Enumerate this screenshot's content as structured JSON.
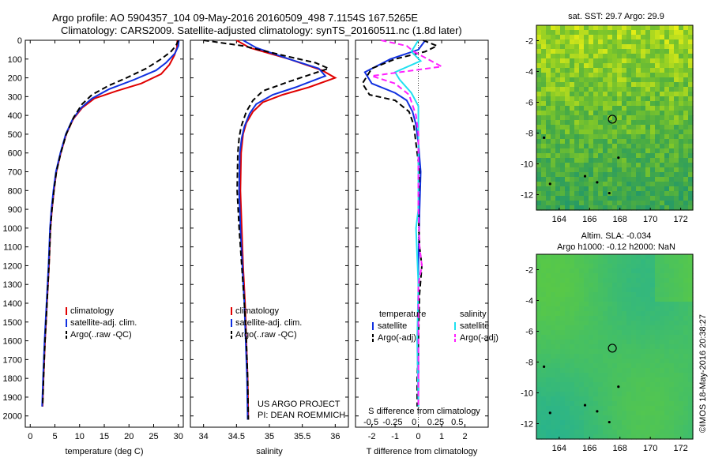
{
  "header": {
    "line1": "Argo profile: AO 5904357_104 09-May-2016 20160509_498 7.1154S 167.5265E",
    "line2": "Climatology: CARS2009. Satellite-adjusted climatology: synTS_20160511.nc (1.8d later)"
  },
  "colors": {
    "clim": "#e00000",
    "sat": "#1030e0",
    "argo": "#000000",
    "cyan": "#20e0f0",
    "magenta": "#ff20ff"
  },
  "depth_ticks": [
    0,
    100,
    200,
    300,
    400,
    500,
    600,
    700,
    800,
    900,
    1000,
    1100,
    1200,
    1300,
    1400,
    1500,
    1600,
    1700,
    1800,
    1900,
    2000
  ],
  "credit": {
    "project": "US ARGO PROJECT",
    "pi": "PI: DEAN ROEMMICH"
  },
  "timestamp": "©IMOS 18-May-2016 20:38:27",
  "chart_data": [
    {
      "type": "line",
      "name": "temperature",
      "xlabel": "temperature (deg C)",
      "ylabel": "",
      "xlim": [
        -1,
        31
      ],
      "ylim": [
        2060,
        0
      ],
      "xticks": [
        0,
        5,
        10,
        15,
        20,
        25,
        30
      ],
      "legend": [
        "climatology",
        "satellite-adj. clim.",
        "Argo(..raw -QC)"
      ],
      "series": [
        {
          "key": "clim",
          "style": "solid",
          "points": [
            [
              29.8,
              0
            ],
            [
              29.7,
              40
            ],
            [
              29.2,
              80
            ],
            [
              28.2,
              130
            ],
            [
              26.5,
              180
            ],
            [
              22.5,
              230
            ],
            [
              17.5,
              270
            ],
            [
              13,
              310
            ],
            [
              10.5,
              360
            ],
            [
              8.7,
              420
            ],
            [
              7.3,
              500
            ],
            [
              6.2,
              600
            ],
            [
              5.3,
              700
            ],
            [
              4.8,
              800
            ],
            [
              4.4,
              900
            ],
            [
              4.1,
              1000
            ],
            [
              3.8,
              1200
            ],
            [
              3.4,
              1400
            ],
            [
              3.0,
              1600
            ],
            [
              2.7,
              1800
            ],
            [
              2.5,
              1950
            ]
          ]
        },
        {
          "key": "sat",
          "style": "solid",
          "points": [
            [
              30.1,
              0
            ],
            [
              30.0,
              30
            ],
            [
              29.3,
              70
            ],
            [
              27.5,
              120
            ],
            [
              25.5,
              160
            ],
            [
              21,
              210
            ],
            [
              16,
              260
            ],
            [
              12.5,
              310
            ],
            [
              10.3,
              360
            ],
            [
              8.6,
              420
            ],
            [
              7.2,
              500
            ],
            [
              6.1,
              600
            ],
            [
              5.2,
              700
            ],
            [
              4.7,
              800
            ],
            [
              4.3,
              900
            ],
            [
              4.0,
              1000
            ],
            [
              3.7,
              1200
            ],
            [
              3.3,
              1400
            ],
            [
              2.9,
              1600
            ],
            [
              2.6,
              1800
            ],
            [
              2.4,
              1950
            ]
          ]
        },
        {
          "key": "argo",
          "style": "dash",
          "points": [
            [
              30.0,
              0
            ],
            [
              29.5,
              30
            ],
            [
              28.5,
              60
            ],
            [
              26.5,
              100
            ],
            [
              23.5,
              150
            ],
            [
              19.5,
              200
            ],
            [
              16,
              240
            ],
            [
              12.5,
              290
            ],
            [
              10.5,
              340
            ],
            [
              8.8,
              410
            ],
            [
              7.3,
              500
            ],
            [
              6.2,
              600
            ],
            [
              5.3,
              700
            ],
            [
              4.8,
              800
            ],
            [
              4.4,
              900
            ],
            [
              4.1,
              1000
            ],
            [
              3.8,
              1200
            ],
            [
              3.4,
              1400
            ],
            [
              3.0,
              1600
            ],
            [
              2.7,
              1800
            ],
            [
              2.5,
              1950
            ]
          ]
        }
      ]
    },
    {
      "type": "line",
      "name": "salinity",
      "xlabel": "salinity",
      "ylabel": "",
      "xlim": [
        33.8,
        36.2
      ],
      "ylim": [
        2060,
        0
      ],
      "xticks": [
        34,
        34.5,
        35,
        35.5,
        36
      ],
      "legend": [
        "climatology",
        "satellite-adj. clim.",
        "Argo(..raw -QC)"
      ],
      "series": [
        {
          "key": "clim",
          "style": "solid",
          "points": [
            [
              34.5,
              0
            ],
            [
              34.7,
              40
            ],
            [
              35.3,
              100
            ],
            [
              35.8,
              160
            ],
            [
              36.0,
              200
            ],
            [
              35.6,
              250
            ],
            [
              35.2,
              290
            ],
            [
              34.9,
              330
            ],
            [
              34.75,
              380
            ],
            [
              34.65,
              440
            ],
            [
              34.6,
              500
            ],
            [
              34.57,
              600
            ],
            [
              34.56,
              800
            ],
            [
              34.58,
              1000
            ],
            [
              34.6,
              1200
            ],
            [
              34.63,
              1400
            ],
            [
              34.65,
              1600
            ],
            [
              34.67,
              1800
            ],
            [
              34.68,
              2020
            ]
          ]
        },
        {
          "key": "sat",
          "style": "solid",
          "points": [
            [
              34.6,
              0
            ],
            [
              34.8,
              40
            ],
            [
              35.3,
              100
            ],
            [
              35.75,
              150
            ],
            [
              35.85,
              190
            ],
            [
              35.4,
              250
            ],
            [
              35.05,
              290
            ],
            [
              34.8,
              340
            ],
            [
              34.7,
              390
            ],
            [
              34.62,
              460
            ],
            [
              34.58,
              520
            ],
            [
              34.55,
              600
            ],
            [
              34.54,
              800
            ],
            [
              34.56,
              1000
            ],
            [
              34.59,
              1200
            ],
            [
              34.62,
              1400
            ],
            [
              34.64,
              1600
            ],
            [
              34.66,
              1800
            ],
            [
              34.67,
              2020
            ]
          ]
        },
        {
          "key": "argo",
          "style": "dash",
          "points": [
            [
              34.0,
              0
            ],
            [
              34.6,
              30
            ],
            [
              35.2,
              80
            ],
            [
              35.7,
              120
            ],
            [
              35.9,
              150
            ],
            [
              35.3,
              220
            ],
            [
              34.9,
              270
            ],
            [
              34.75,
              320
            ],
            [
              34.65,
              380
            ],
            [
              34.57,
              460
            ],
            [
              34.54,
              520
            ],
            [
              34.52,
              600
            ],
            [
              34.51,
              800
            ],
            [
              34.54,
              1000
            ],
            [
              34.58,
              1200
            ],
            [
              34.62,
              1400
            ],
            [
              34.65,
              1600
            ],
            [
              34.67,
              1800
            ],
            [
              34.68,
              2020
            ]
          ]
        }
      ]
    },
    {
      "type": "line",
      "name": "difference",
      "xlabel": "T difference from climatology",
      "x2label": "S difference from climatology",
      "xlim": [
        -2.7,
        3.0
      ],
      "xticks": [
        -2,
        -1,
        0,
        1,
        2
      ],
      "x2ticks": [
        -0.5,
        -0.25,
        0,
        0.25,
        0.5
      ],
      "ylim": [
        2060,
        0
      ],
      "legend": {
        "left_title": "temperature",
        "right_title": "salinity",
        "items": [
          "satellite",
          "Argo(-adj)",
          "satellite",
          "Argo(-adj)"
        ]
      },
      "series": [
        {
          "key": "sat",
          "style": "solid",
          "points": [
            [
              0.3,
              0
            ],
            [
              0,
              50
            ],
            [
              -1.2,
              100
            ],
            [
              -2.3,
              170
            ],
            [
              -2.0,
              230
            ],
            [
              -1.0,
              280
            ],
            [
              -0.5,
              320
            ],
            [
              -0.25,
              380
            ],
            [
              -0.1,
              450
            ],
            [
              0,
              550
            ],
            [
              0.1,
              700
            ],
            [
              0.05,
              900
            ],
            [
              0,
              1200
            ],
            [
              0,
              1600
            ],
            [
              0,
              1950
            ]
          ]
        },
        {
          "key": "argo",
          "style": "dash",
          "points": [
            [
              0.2,
              0
            ],
            [
              0.8,
              30
            ],
            [
              0.3,
              60
            ],
            [
              -1.0,
              100
            ],
            [
              -2.0,
              150
            ],
            [
              -2.4,
              230
            ],
            [
              -2.1,
              290
            ],
            [
              -1.0,
              320
            ],
            [
              -0.4,
              380
            ],
            [
              -0.2,
              450
            ],
            [
              -0.1,
              550
            ],
            [
              0.05,
              700
            ],
            [
              0,
              900
            ],
            [
              0.05,
              1100
            ],
            [
              0.15,
              1200
            ],
            [
              0.05,
              1350
            ],
            [
              0,
              1600
            ],
            [
              -0.05,
              1800
            ],
            [
              -0.05,
              1950
            ]
          ]
        },
        {
          "key": "cyan",
          "style": "solid",
          "points": [
            [
              0,
              0
            ],
            [
              -0.3,
              60
            ],
            [
              0.1,
              110
            ],
            [
              -1.0,
              170
            ],
            [
              -0.8,
              210
            ],
            [
              -0.3,
              280
            ],
            [
              0,
              350
            ],
            [
              0,
              500
            ],
            [
              0,
              700
            ],
            [
              0,
              900
            ],
            [
              -0.1,
              1000
            ],
            [
              0,
              1300
            ],
            [
              -0.05,
              1600
            ],
            [
              0,
              1950
            ]
          ]
        },
        {
          "key": "magenta",
          "style": "dash",
          "points": [
            [
              -1.6,
              0
            ],
            [
              -0.5,
              30
            ],
            [
              -0.2,
              60
            ],
            [
              1.0,
              140
            ],
            [
              -2.0,
              190
            ],
            [
              -1.0,
              230
            ],
            [
              -0.4,
              290
            ],
            [
              -0.1,
              400
            ],
            [
              0,
              500
            ],
            [
              0,
              700
            ],
            [
              0,
              900
            ],
            [
              0.05,
              1100
            ],
            [
              0.15,
              1200
            ],
            [
              0,
              1300
            ],
            [
              0,
              1500
            ],
            [
              0,
              1950
            ]
          ]
        }
      ]
    }
  ],
  "maps": [
    {
      "title": "sat. SST: 29.7 Argo: 29.9",
      "xlim": [
        162.5,
        172.8
      ],
      "ylim": [
        -13,
        -1
      ],
      "xticks": [
        164,
        166,
        168,
        170,
        172
      ],
      "yticks": [
        -2,
        -4,
        -6,
        -8,
        -10,
        -12
      ],
      "marker": [
        167.5,
        -7.1
      ]
    },
    {
      "title": "Altim. SLA: -0.034",
      "subtitle": "Argo h1000: -0.12 h2000: NaN",
      "xlim": [
        162.5,
        172.8
      ],
      "ylim": [
        -13,
        -1
      ],
      "xticks": [
        164,
        166,
        168,
        170,
        172
      ],
      "yticks": [
        -2,
        -4,
        -6,
        -8,
        -10,
        -12
      ],
      "marker": [
        167.5,
        -7.1
      ]
    }
  ]
}
